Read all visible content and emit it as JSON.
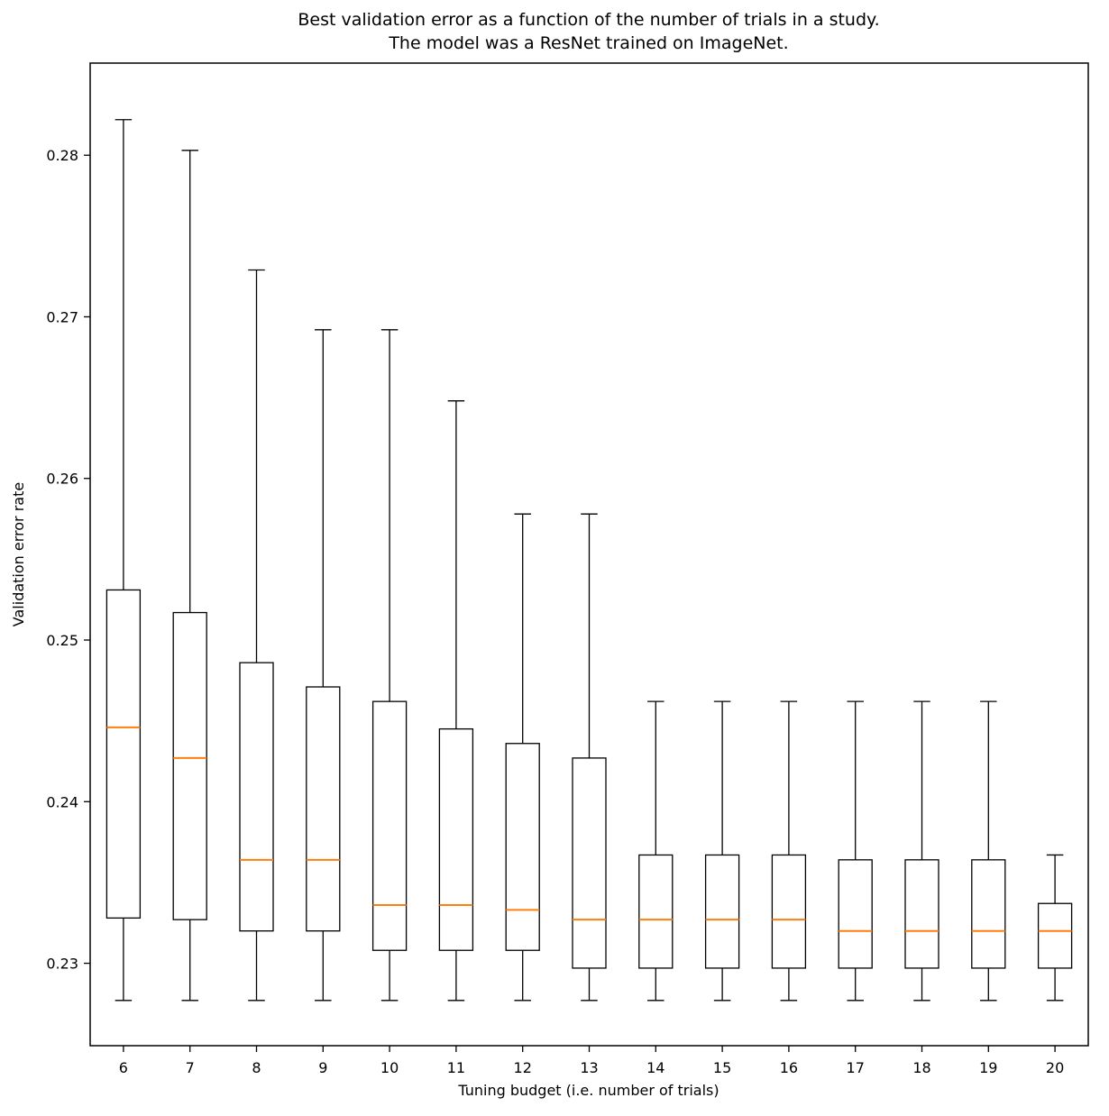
{
  "chart_data": {
    "type": "boxplot",
    "title_line1": "Best validation error as a function of the number of trials in a study.",
    "title_line2": "The model was a ResNet trained on ImageNet.",
    "xlabel": "Tuning budget (i.e. number of trials)",
    "ylabel": "Validation error rate",
    "categories": [
      6,
      7,
      8,
      9,
      10,
      11,
      12,
      13,
      14,
      15,
      16,
      17,
      18,
      19,
      20
    ],
    "yticks": [
      0.23,
      0.24,
      0.25,
      0.26,
      0.27,
      0.28
    ],
    "ylim": [
      0.2249,
      0.2857
    ],
    "grid": false,
    "legend": "none",
    "box_edge_color": "#000000",
    "median_color": "#ff7f0e",
    "boxes": [
      {
        "x": 6,
        "whislo": 0.2277,
        "q1": 0.2328,
        "med": 0.2446,
        "q3": 0.2531,
        "whishi": 0.2822
      },
      {
        "x": 7,
        "whislo": 0.2277,
        "q1": 0.2327,
        "med": 0.2427,
        "q3": 0.2517,
        "whishi": 0.2803
      },
      {
        "x": 8,
        "whislo": 0.2277,
        "q1": 0.232,
        "med": 0.2364,
        "q3": 0.2486,
        "whishi": 0.2729
      },
      {
        "x": 9,
        "whislo": 0.2277,
        "q1": 0.232,
        "med": 0.2364,
        "q3": 0.2471,
        "whishi": 0.2692
      },
      {
        "x": 10,
        "whislo": 0.2277,
        "q1": 0.2308,
        "med": 0.2336,
        "q3": 0.2462,
        "whishi": 0.2692
      },
      {
        "x": 11,
        "whislo": 0.2277,
        "q1": 0.2308,
        "med": 0.2336,
        "q3": 0.2445,
        "whishi": 0.2648
      },
      {
        "x": 12,
        "whislo": 0.2277,
        "q1": 0.2308,
        "med": 0.2333,
        "q3": 0.2436,
        "whishi": 0.2578
      },
      {
        "x": 13,
        "whislo": 0.2277,
        "q1": 0.2297,
        "med": 0.2327,
        "q3": 0.2427,
        "whishi": 0.2578
      },
      {
        "x": 14,
        "whislo": 0.2277,
        "q1": 0.2297,
        "med": 0.2327,
        "q3": 0.2367,
        "whishi": 0.2462
      },
      {
        "x": 15,
        "whislo": 0.2277,
        "q1": 0.2297,
        "med": 0.2327,
        "q3": 0.2367,
        "whishi": 0.2462
      },
      {
        "x": 16,
        "whislo": 0.2277,
        "q1": 0.2297,
        "med": 0.2327,
        "q3": 0.2367,
        "whishi": 0.2462
      },
      {
        "x": 17,
        "whislo": 0.2277,
        "q1": 0.2297,
        "med": 0.232,
        "q3": 0.2364,
        "whishi": 0.2462
      },
      {
        "x": 18,
        "whislo": 0.2277,
        "q1": 0.2297,
        "med": 0.232,
        "q3": 0.2364,
        "whishi": 0.2462
      },
      {
        "x": 19,
        "whislo": 0.2277,
        "q1": 0.2297,
        "med": 0.232,
        "q3": 0.2364,
        "whishi": 0.2462
      },
      {
        "x": 20,
        "whislo": 0.2277,
        "q1": 0.2297,
        "med": 0.232,
        "q3": 0.2337,
        "whishi": 0.2367
      }
    ]
  }
}
